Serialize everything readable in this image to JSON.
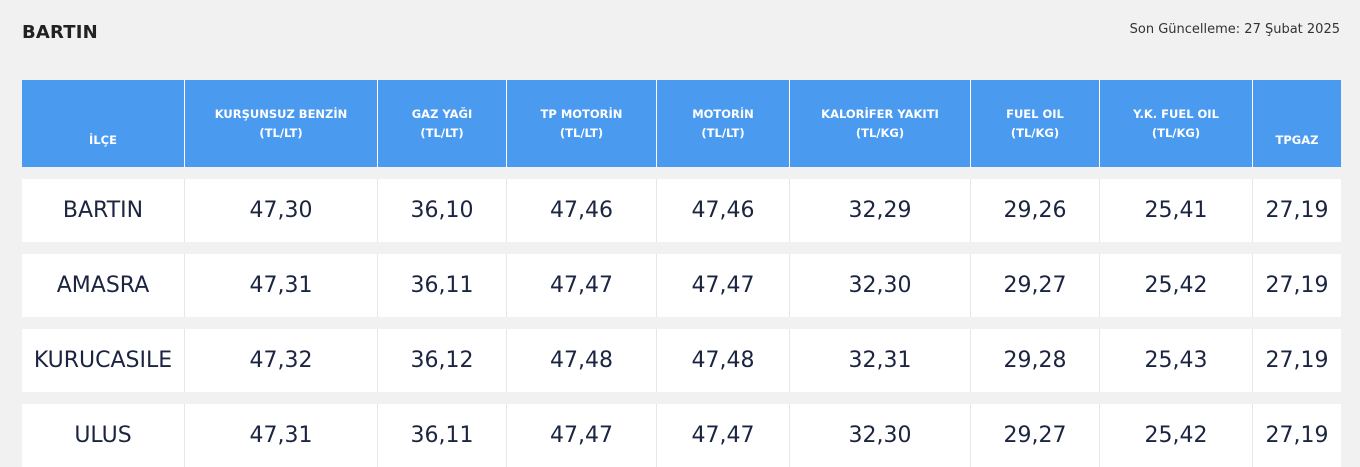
{
  "page": {
    "title": "BARTIN",
    "last_update": "Son Güncelleme: 27 Şubat 2025"
  },
  "table": {
    "headers": [
      {
        "line1": "İLÇE",
        "line2": ""
      },
      {
        "line1": "KURŞUNSUZ BENZİN",
        "line2": "(TL/LT)"
      },
      {
        "line1": "GAZ YAĞI",
        "line2": "(TL/LT)"
      },
      {
        "line1": "TP MOTORİN",
        "line2": "(TL/LT)"
      },
      {
        "line1": "MOTORİN",
        "line2": "(TL/LT)"
      },
      {
        "line1": "KALORİFER YAKITI",
        "line2": "(TL/KG)"
      },
      {
        "line1": "FUEL OIL",
        "line2": "(TL/KG)"
      },
      {
        "line1": "Y.K. FUEL OIL",
        "line2": "(TL/KG)"
      },
      {
        "line1": "TPGAZ",
        "line2": ""
      }
    ],
    "rows": [
      [
        "BARTIN",
        "47,30",
        "36,10",
        "47,46",
        "47,46",
        "32,29",
        "29,26",
        "25,41",
        "27,19"
      ],
      [
        "AMASRA",
        "47,31",
        "36,11",
        "47,47",
        "47,47",
        "32,30",
        "29,27",
        "25,42",
        "27,19"
      ],
      [
        "KURUCASILE",
        "47,32",
        "36,12",
        "47,48",
        "47,48",
        "32,31",
        "29,28",
        "25,43",
        "27,19"
      ],
      [
        "ULUS",
        "47,31",
        "36,11",
        "47,47",
        "47,47",
        "32,30",
        "29,27",
        "25,42",
        "27,19"
      ]
    ]
  },
  "colors": {
    "header_bg": "#4a9bf0",
    "page_bg": "#f1f1f1",
    "cell_bg": "#ffffff",
    "cell_text": "#1b2440"
  }
}
